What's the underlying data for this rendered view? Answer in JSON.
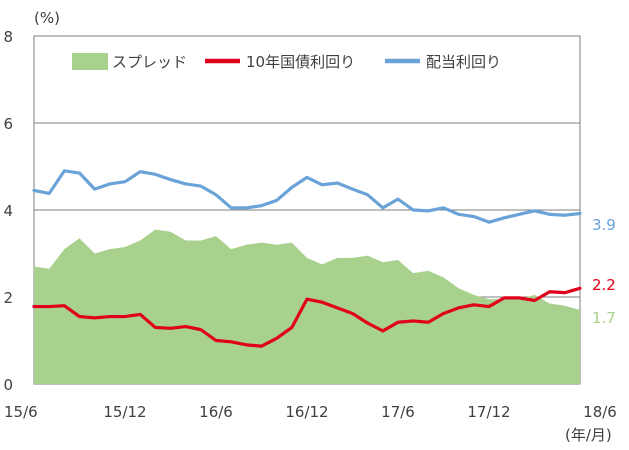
{
  "chart_data": {
    "type": "area",
    "ylabel_unit": "(%)",
    "xlabel_unit": "(年/月)",
    "ylim": [
      0,
      8
    ],
    "yticks": [
      "0",
      "2",
      "4",
      "6",
      "8"
    ],
    "xticks": [
      {
        "i": 0,
        "label": "15/6"
      },
      {
        "i": 6,
        "label": "15/12"
      },
      {
        "i": 12,
        "label": "16/6"
      },
      {
        "i": 18,
        "label": "16/12"
      },
      {
        "i": 24,
        "label": "17/6"
      },
      {
        "i": 30,
        "label": "17/12"
      },
      {
        "i": 36,
        "label": "18/6"
      }
    ],
    "gridlines": [
      2,
      4,
      6,
      8
    ],
    "legend_position": "top",
    "series": [
      {
        "key": "spread",
        "name": "スプレッド",
        "kind": "area",
        "color": "#a9d18e",
        "values": [
          2.7,
          2.65,
          3.1,
          3.35,
          3.0,
          3.1,
          3.15,
          3.3,
          3.55,
          3.5,
          3.3,
          3.3,
          3.4,
          3.1,
          3.2,
          3.25,
          3.2,
          3.25,
          2.9,
          2.75,
          2.9,
          2.9,
          2.95,
          2.8,
          2.85,
          2.55,
          2.6,
          2.45,
          2.2,
          2.05,
          1.95,
          1.95,
          1.95,
          2.05,
          1.85,
          1.8,
          1.7
        ],
        "end_label": "1.7"
      },
      {
        "key": "bond",
        "name": "10年国債利回り",
        "kind": "line",
        "color": "#e0001b",
        "values": [
          1.78,
          1.78,
          1.8,
          1.55,
          1.52,
          1.55,
          1.55,
          1.6,
          1.3,
          1.28,
          1.32,
          1.25,
          1.0,
          0.97,
          0.9,
          0.87,
          1.05,
          1.3,
          1.95,
          1.88,
          1.75,
          1.62,
          1.4,
          1.22,
          1.42,
          1.45,
          1.42,
          1.62,
          1.75,
          1.82,
          1.78,
          1.98,
          1.98,
          1.92,
          2.12,
          2.1,
          2.2
        ],
        "end_label": "2.2"
      },
      {
        "key": "dividend",
        "name": "配当利回り",
        "kind": "line",
        "color": "#6aa3d8",
        "values": [
          4.45,
          4.38,
          4.9,
          4.85,
          4.48,
          4.6,
          4.65,
          4.88,
          4.82,
          4.7,
          4.6,
          4.55,
          4.35,
          4.05,
          4.05,
          4.1,
          4.22,
          4.52,
          4.75,
          4.58,
          4.62,
          4.48,
          4.35,
          4.05,
          4.25,
          4.0,
          3.98,
          4.05,
          3.9,
          3.85,
          3.72,
          3.82,
          3.9,
          3.98,
          3.9,
          3.88,
          3.92
        ],
        "end_label": "3.9"
      }
    ]
  }
}
